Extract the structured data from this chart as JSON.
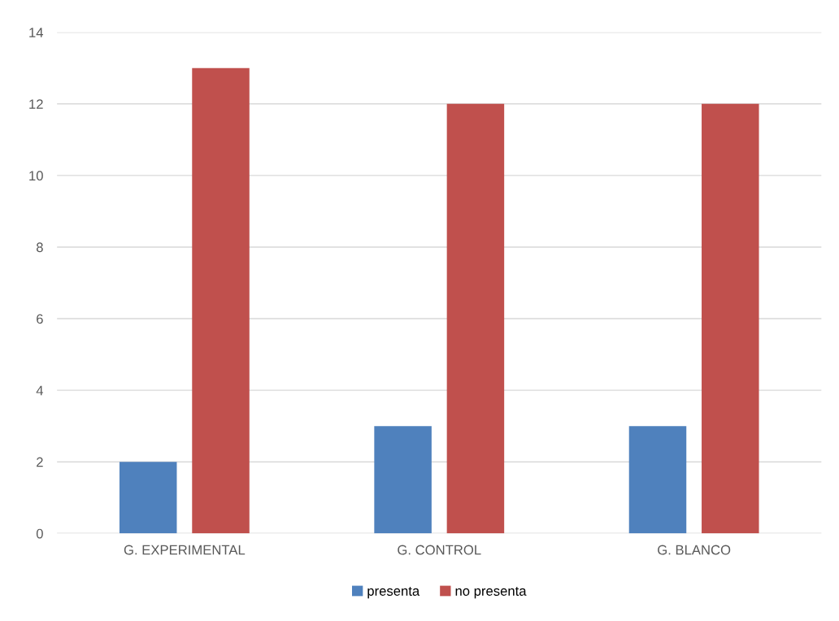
{
  "chart_data": {
    "type": "bar",
    "categories": [
      "G. EXPERIMENTAL",
      "G. CONTROL",
      "G. BLANCO"
    ],
    "series": [
      {
        "name": "presenta",
        "color": "#4f81bd",
        "values": [
          2,
          3,
          3
        ]
      },
      {
        "name": "no presenta",
        "color": "#c0504d",
        "values": [
          13,
          12,
          12
        ]
      }
    ],
    "ylim": [
      0,
      14
    ],
    "yticks": [
      0,
      2,
      4,
      6,
      8,
      10,
      12,
      14
    ],
    "grid": "y",
    "legend": "bottom"
  }
}
